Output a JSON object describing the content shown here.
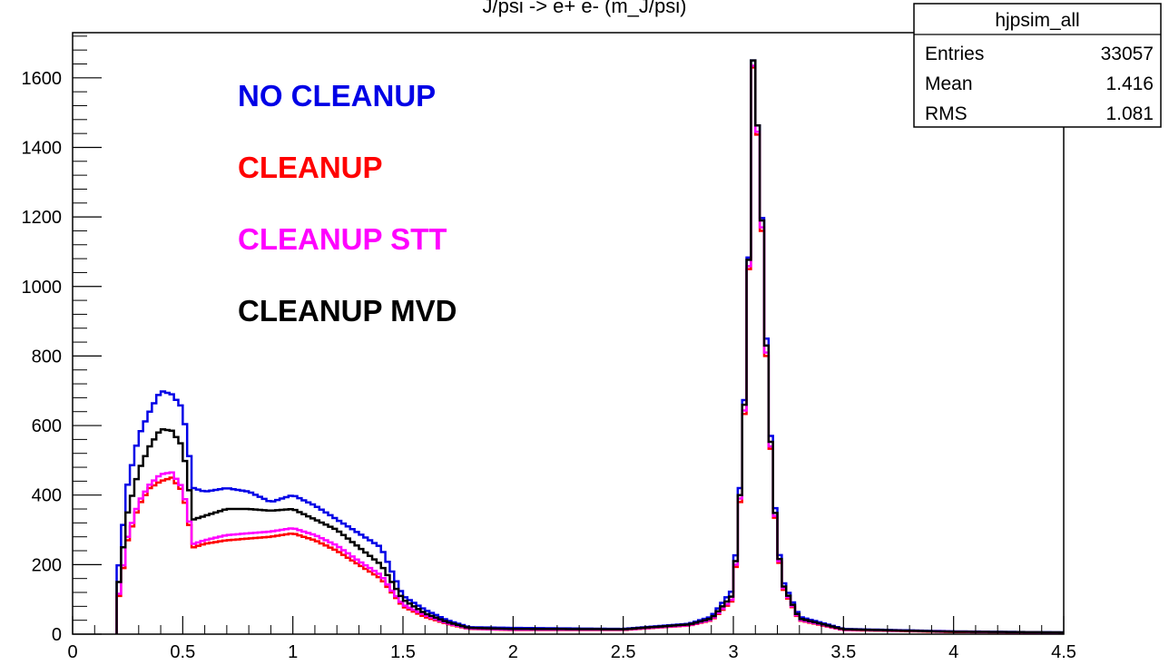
{
  "chart_data": {
    "type": "line",
    "title": "J/psi -> e+ e- (m_J/psi)",
    "xlim": [
      0,
      4.5
    ],
    "ylim": [
      0,
      1730
    ],
    "x_ticks": [
      0,
      0.5,
      1,
      1.5,
      2,
      2.5,
      3,
      3.5,
      4,
      4.5
    ],
    "x_tick_labels": [
      "0",
      "0.5",
      "1",
      "1.5",
      "2",
      "2.5",
      "3",
      "3.5",
      "4",
      "4.5"
    ],
    "y_ticks": [
      0,
      200,
      400,
      600,
      800,
      1000,
      1200,
      1400,
      1600
    ],
    "y_tick_labels": [
      "0",
      "200",
      "400",
      "600",
      "800",
      "1000",
      "1200",
      "1400",
      "1600"
    ],
    "grid": false,
    "legend_placement": "top-left",
    "stats_box": {
      "name": "hjpsim_all",
      "rows": [
        {
          "label": "Entries",
          "value": "33057"
        },
        {
          "label": "Mean",
          "value": "1.416"
        },
        {
          "label": "RMS",
          "value": "1.081"
        }
      ]
    },
    "series": [
      {
        "name": "NO CLEANUP",
        "color": "#0000e6",
        "points": [
          [
            0.2,
            140
          ],
          [
            0.25,
            430
          ],
          [
            0.3,
            570
          ],
          [
            0.35,
            640
          ],
          [
            0.4,
            700
          ],
          [
            0.45,
            690
          ],
          [
            0.5,
            650
          ],
          [
            0.55,
            420
          ],
          [
            0.6,
            410
          ],
          [
            0.7,
            420
          ],
          [
            0.8,
            410
          ],
          [
            0.9,
            380
          ],
          [
            1.0,
            400
          ],
          [
            1.1,
            370
          ],
          [
            1.2,
            330
          ],
          [
            1.3,
            290
          ],
          [
            1.4,
            250
          ],
          [
            1.45,
            180
          ],
          [
            1.5,
            110
          ],
          [
            1.6,
            70
          ],
          [
            1.7,
            40
          ],
          [
            1.8,
            20
          ],
          [
            2.0,
            18
          ],
          [
            2.5,
            15
          ],
          [
            2.8,
            30
          ],
          [
            2.9,
            50
          ],
          [
            3.0,
            130
          ],
          [
            3.03,
            420
          ],
          [
            3.06,
            800
          ],
          [
            3.09,
            1650
          ],
          [
            3.12,
            1370
          ],
          [
            3.15,
            850
          ],
          [
            3.18,
            430
          ],
          [
            3.22,
            160
          ],
          [
            3.3,
            50
          ],
          [
            3.5,
            15
          ],
          [
            4.0,
            8
          ],
          [
            4.5,
            5
          ]
        ]
      },
      {
        "name": "CLEANUP",
        "color": "#ff0000",
        "points": [
          [
            0.2,
            70
          ],
          [
            0.25,
            270
          ],
          [
            0.3,
            370
          ],
          [
            0.35,
            420
          ],
          [
            0.4,
            440
          ],
          [
            0.45,
            450
          ],
          [
            0.5,
            410
          ],
          [
            0.55,
            250
          ],
          [
            0.6,
            260
          ],
          [
            0.7,
            270
          ],
          [
            0.8,
            275
          ],
          [
            0.9,
            280
          ],
          [
            1.0,
            290
          ],
          [
            1.1,
            270
          ],
          [
            1.2,
            240
          ],
          [
            1.3,
            200
          ],
          [
            1.4,
            160
          ],
          [
            1.45,
            120
          ],
          [
            1.5,
            80
          ],
          [
            1.6,
            50
          ],
          [
            1.7,
            30
          ],
          [
            1.8,
            15
          ],
          [
            2.0,
            12
          ],
          [
            2.5,
            12
          ],
          [
            2.8,
            25
          ],
          [
            2.9,
            40
          ],
          [
            3.0,
            100
          ],
          [
            3.03,
            380
          ],
          [
            3.06,
            760
          ],
          [
            3.09,
            1630
          ],
          [
            3.12,
            1340
          ],
          [
            3.15,
            800
          ],
          [
            3.18,
            400
          ],
          [
            3.22,
            140
          ],
          [
            3.3,
            40
          ],
          [
            3.5,
            12
          ],
          [
            4.0,
            6
          ],
          [
            4.5,
            4
          ]
        ]
      },
      {
        "name": "CLEANUP STT",
        "color": "#ff00ff",
        "points": [
          [
            0.2,
            75
          ],
          [
            0.25,
            280
          ],
          [
            0.3,
            380
          ],
          [
            0.35,
            430
          ],
          [
            0.4,
            460
          ],
          [
            0.45,
            465
          ],
          [
            0.5,
            420
          ],
          [
            0.55,
            260
          ],
          [
            0.6,
            270
          ],
          [
            0.7,
            285
          ],
          [
            0.8,
            290
          ],
          [
            0.9,
            295
          ],
          [
            1.0,
            305
          ],
          [
            1.1,
            285
          ],
          [
            1.2,
            255
          ],
          [
            1.3,
            210
          ],
          [
            1.4,
            170
          ],
          [
            1.45,
            125
          ],
          [
            1.5,
            85
          ],
          [
            1.6,
            55
          ],
          [
            1.7,
            32
          ],
          [
            1.8,
            16
          ],
          [
            2.0,
            13
          ],
          [
            2.5,
            13
          ],
          [
            2.8,
            26
          ],
          [
            2.9,
            42
          ],
          [
            3.0,
            105
          ],
          [
            3.03,
            390
          ],
          [
            3.06,
            770
          ],
          [
            3.09,
            1635
          ],
          [
            3.12,
            1350
          ],
          [
            3.15,
            810
          ],
          [
            3.18,
            405
          ],
          [
            3.22,
            145
          ],
          [
            3.3,
            42
          ],
          [
            3.5,
            13
          ],
          [
            4.0,
            7
          ],
          [
            4.5,
            4
          ]
        ]
      },
      {
        "name": "CLEANUP MVD",
        "color": "#000000",
        "points": [
          [
            0.2,
            100
          ],
          [
            0.25,
            350
          ],
          [
            0.3,
            470
          ],
          [
            0.35,
            540
          ],
          [
            0.4,
            590
          ],
          [
            0.45,
            585
          ],
          [
            0.5,
            540
          ],
          [
            0.55,
            330
          ],
          [
            0.6,
            340
          ],
          [
            0.7,
            360
          ],
          [
            0.8,
            360
          ],
          [
            0.9,
            355
          ],
          [
            1.0,
            360
          ],
          [
            1.1,
            330
          ],
          [
            1.2,
            300
          ],
          [
            1.3,
            250
          ],
          [
            1.4,
            200
          ],
          [
            1.45,
            150
          ],
          [
            1.5,
            100
          ],
          [
            1.6,
            60
          ],
          [
            1.7,
            35
          ],
          [
            1.8,
            18
          ],
          [
            2.0,
            15
          ],
          [
            2.5,
            14
          ],
          [
            2.8,
            28
          ],
          [
            2.9,
            45
          ],
          [
            3.0,
            115
          ],
          [
            3.03,
            400
          ],
          [
            3.06,
            790
          ],
          [
            3.09,
            1650
          ],
          [
            3.12,
            1370
          ],
          [
            3.15,
            830
          ],
          [
            3.18,
            415
          ],
          [
            3.22,
            150
          ],
          [
            3.3,
            45
          ],
          [
            3.5,
            14
          ],
          [
            4.0,
            7
          ],
          [
            4.5,
            5
          ]
        ]
      }
    ]
  }
}
